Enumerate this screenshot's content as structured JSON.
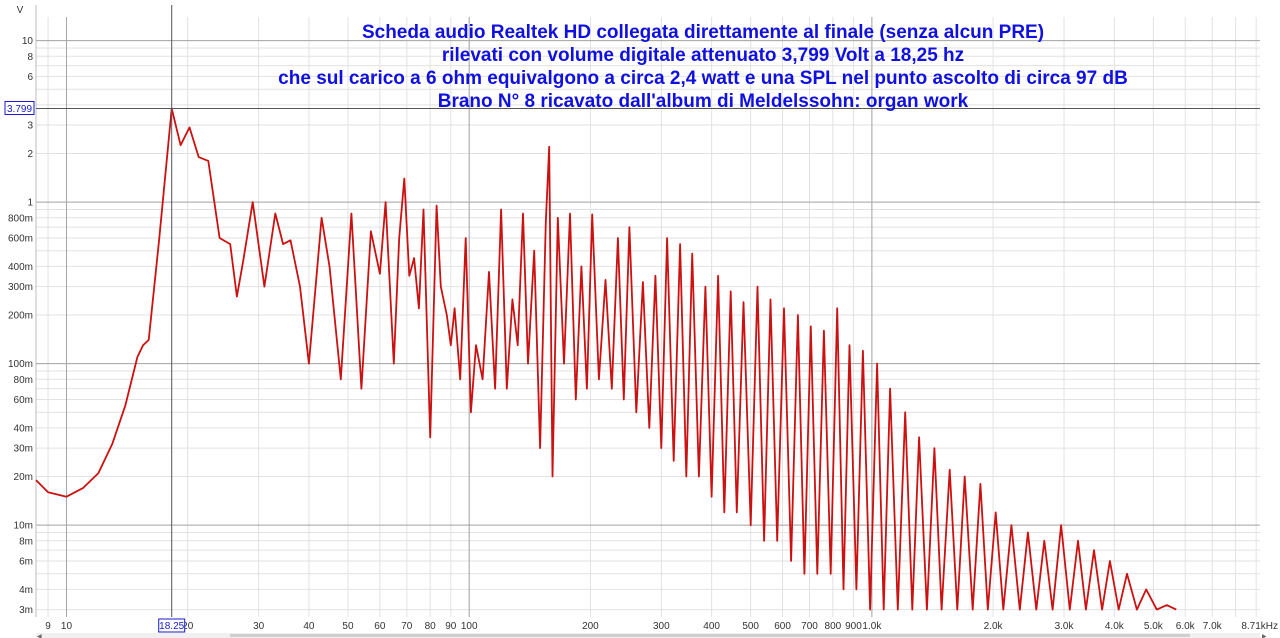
{
  "chart_data": {
    "type": "line",
    "title_lines": [
      "Scheda audio Realtek HD collegata direttamente al finale (senza alcun PRE)",
      "rilevati con volume digitale attenuato 3,799 Volt a 18,25 hz",
      "che sul carico a 6 ohm equivalgono a circa 2,4 watt e una SPL nel punto ascolto di circa 97 dB",
      "Brano N° 8 ricavato dall'album di Meldelssohn: organ work"
    ],
    "y_unit": "V",
    "x_scale": "log",
    "y_scale": "log",
    "xlim": [
      8.4,
      9200
    ],
    "ylim": [
      0.0027,
      14
    ],
    "x_tick_labels": [
      {
        "v": 9,
        "t": "9"
      },
      {
        "v": 10,
        "t": "10"
      },
      {
        "v": 20,
        "t": "20"
      },
      {
        "v": 30,
        "t": "30"
      },
      {
        "v": 40,
        "t": "40"
      },
      {
        "v": 50,
        "t": "50"
      },
      {
        "v": 60,
        "t": "60"
      },
      {
        "v": 70,
        "t": "70"
      },
      {
        "v": 80,
        "t": "80"
      },
      {
        "v": 90,
        "t": "90"
      },
      {
        "v": 100,
        "t": "100"
      },
      {
        "v": 200,
        "t": "200"
      },
      {
        "v": 300,
        "t": "300"
      },
      {
        "v": 400,
        "t": "400"
      },
      {
        "v": 500,
        "t": "500"
      },
      {
        "v": 600,
        "t": "600"
      },
      {
        "v": 700,
        "t": "700"
      },
      {
        "v": 800,
        "t": "800"
      },
      {
        "v": 900,
        "t": "900"
      },
      {
        "v": 1000,
        "t": "1.0k"
      },
      {
        "v": 2000,
        "t": "2.0k"
      },
      {
        "v": 3000,
        "t": "3.0k"
      },
      {
        "v": 4000,
        "t": "4.0k"
      },
      {
        "v": 5000,
        "t": "5.0k"
      },
      {
        "v": 6000,
        "t": "6.0k"
      },
      {
        "v": 7000,
        "t": "7.0k"
      },
      {
        "v": 8710,
        "t": "8.71kHz"
      }
    ],
    "y_tick_labels": [
      {
        "v": 10,
        "t": "10"
      },
      {
        "v": 8,
        "t": "8"
      },
      {
        "v": 6,
        "t": "6"
      },
      {
        "v": 3,
        "t": "3"
      },
      {
        "v": 2,
        "t": "2"
      },
      {
        "v": 1,
        "t": "1"
      },
      {
        "v": 0.8,
        "t": "800m"
      },
      {
        "v": 0.6,
        "t": "600m"
      },
      {
        "v": 0.4,
        "t": "400m"
      },
      {
        "v": 0.3,
        "t": "300m"
      },
      {
        "v": 0.2,
        "t": "200m"
      },
      {
        "v": 0.1,
        "t": "100m"
      },
      {
        "v": 0.08,
        "t": "80m"
      },
      {
        "v": 0.06,
        "t": "60m"
      },
      {
        "v": 0.04,
        "t": "40m"
      },
      {
        "v": 0.03,
        "t": "30m"
      },
      {
        "v": 0.02,
        "t": "20m"
      },
      {
        "v": 0.01,
        "t": "10m"
      },
      {
        "v": 0.008,
        "t": "8m"
      },
      {
        "v": 0.006,
        "t": "6m"
      },
      {
        "v": 0.004,
        "t": "4m"
      },
      {
        "v": 0.003,
        "t": "3m"
      }
    ],
    "cursor": {
      "x": 18.25,
      "y": 3.799,
      "x_label": "18.25",
      "y_label": "3.799"
    },
    "grid": true,
    "legend": "none",
    "series": [
      {
        "color": "#cc1111",
        "points": [
          [
            8.4,
            0.019
          ],
          [
            9,
            0.016
          ],
          [
            10,
            0.015
          ],
          [
            11,
            0.017
          ],
          [
            12,
            0.021
          ],
          [
            13,
            0.032
          ],
          [
            14,
            0.055
          ],
          [
            15,
            0.11
          ],
          [
            15.5,
            0.13
          ],
          [
            16,
            0.14
          ],
          [
            17,
            0.6
          ],
          [
            18.25,
            3.8
          ],
          [
            19.2,
            2.25
          ],
          [
            20.2,
            2.9
          ],
          [
            21.3,
            1.9
          ],
          [
            22.5,
            1.8
          ],
          [
            24,
            0.6
          ],
          [
            25.5,
            0.55
          ],
          [
            26.5,
            0.26
          ],
          [
            27.5,
            0.44
          ],
          [
            29,
            1.0
          ],
          [
            31,
            0.3
          ],
          [
            33,
            0.85
          ],
          [
            34.5,
            0.55
          ],
          [
            36,
            0.58
          ],
          [
            38,
            0.3
          ],
          [
            40,
            0.1
          ],
          [
            43,
            0.8
          ],
          [
            45,
            0.4
          ],
          [
            48,
            0.08
          ],
          [
            51,
            0.85
          ],
          [
            54,
            0.07
          ],
          [
            57,
            0.66
          ],
          [
            60,
            0.36
          ],
          [
            62,
            1.0
          ],
          [
            65,
            0.1
          ],
          [
            67,
            0.6
          ],
          [
            69,
            1.4
          ],
          [
            71,
            0.35
          ],
          [
            73,
            0.45
          ],
          [
            75,
            0.22
          ],
          [
            77,
            0.9
          ],
          [
            80,
            0.035
          ],
          [
            83,
            0.95
          ],
          [
            85,
            0.3
          ],
          [
            88,
            0.2
          ],
          [
            90,
            0.13
          ],
          [
            92,
            0.22
          ],
          [
            95,
            0.08
          ],
          [
            98,
            0.6
          ],
          [
            101,
            0.05
          ],
          [
            104,
            0.13
          ],
          [
            108,
            0.08
          ],
          [
            112,
            0.37
          ],
          [
            116,
            0.07
          ],
          [
            120,
            0.9
          ],
          [
            124,
            0.07
          ],
          [
            128,
            0.25
          ],
          [
            132,
            0.13
          ],
          [
            136,
            0.85
          ],
          [
            140,
            0.1
          ],
          [
            145,
            0.5
          ],
          [
            150,
            0.03
          ],
          [
            155,
            0.75
          ],
          [
            158,
            2.2
          ],
          [
            161,
            0.02
          ],
          [
            166,
            0.8
          ],
          [
            172,
            0.1
          ],
          [
            178,
            0.85
          ],
          [
            184,
            0.06
          ],
          [
            190,
            0.4
          ],
          [
            196,
            0.07
          ],
          [
            202,
            0.84
          ],
          [
            210,
            0.08
          ],
          [
            218,
            0.33
          ],
          [
            226,
            0.07
          ],
          [
            234,
            0.6
          ],
          [
            242,
            0.06
          ],
          [
            250,
            0.7
          ],
          [
            260,
            0.05
          ],
          [
            270,
            0.32
          ],
          [
            280,
            0.04
          ],
          [
            290,
            0.35
          ],
          [
            300,
            0.03
          ],
          [
            310,
            0.6
          ],
          [
            322,
            0.025
          ],
          [
            334,
            0.55
          ],
          [
            346,
            0.02
          ],
          [
            358,
            0.48
          ],
          [
            372,
            0.02
          ],
          [
            386,
            0.3
          ],
          [
            400,
            0.015
          ],
          [
            415,
            0.35
          ],
          [
            430,
            0.012
          ],
          [
            446,
            0.28
          ],
          [
            462,
            0.012
          ],
          [
            480,
            0.24
          ],
          [
            500,
            0.01
          ],
          [
            520,
            0.3
          ],
          [
            540,
            0.008
          ],
          [
            560,
            0.25
          ],
          [
            582,
            0.008
          ],
          [
            605,
            0.22
          ],
          [
            630,
            0.006
          ],
          [
            655,
            0.2
          ],
          [
            680,
            0.005
          ],
          [
            705,
            0.17
          ],
          [
            732,
            0.005
          ],
          [
            760,
            0.16
          ],
          [
            790,
            0.005
          ],
          [
            820,
            0.22
          ],
          [
            850,
            0.004
          ],
          [
            880,
            0.13
          ],
          [
            915,
            0.004
          ],
          [
            950,
            0.12
          ],
          [
            990,
            0.003
          ],
          [
            1030,
            0.1
          ],
          [
            1070,
            0.003
          ],
          [
            1110,
            0.07
          ],
          [
            1160,
            0.003
          ],
          [
            1210,
            0.05
          ],
          [
            1260,
            0.003
          ],
          [
            1310,
            0.035
          ],
          [
            1370,
            0.003
          ],
          [
            1430,
            0.03
          ],
          [
            1490,
            0.003
          ],
          [
            1560,
            0.022
          ],
          [
            1630,
            0.003
          ],
          [
            1700,
            0.02
          ],
          [
            1780,
            0.003
          ],
          [
            1860,
            0.018
          ],
          [
            1940,
            0.003
          ],
          [
            2030,
            0.012
          ],
          [
            2120,
            0.003
          ],
          [
            2220,
            0.01
          ],
          [
            2330,
            0.003
          ],
          [
            2440,
            0.009
          ],
          [
            2560,
            0.003
          ],
          [
            2680,
            0.008
          ],
          [
            2810,
            0.003
          ],
          [
            2950,
            0.01
          ],
          [
            3100,
            0.003
          ],
          [
            3250,
            0.008
          ],
          [
            3400,
            0.003
          ],
          [
            3560,
            0.007
          ],
          [
            3730,
            0.003
          ],
          [
            3900,
            0.006
          ],
          [
            4100,
            0.003
          ],
          [
            4300,
            0.005
          ],
          [
            4550,
            0.003
          ],
          [
            4800,
            0.004
          ],
          [
            5100,
            0.003
          ],
          [
            5400,
            0.0032
          ],
          [
            5700,
            0.003
          ]
        ]
      }
    ]
  }
}
